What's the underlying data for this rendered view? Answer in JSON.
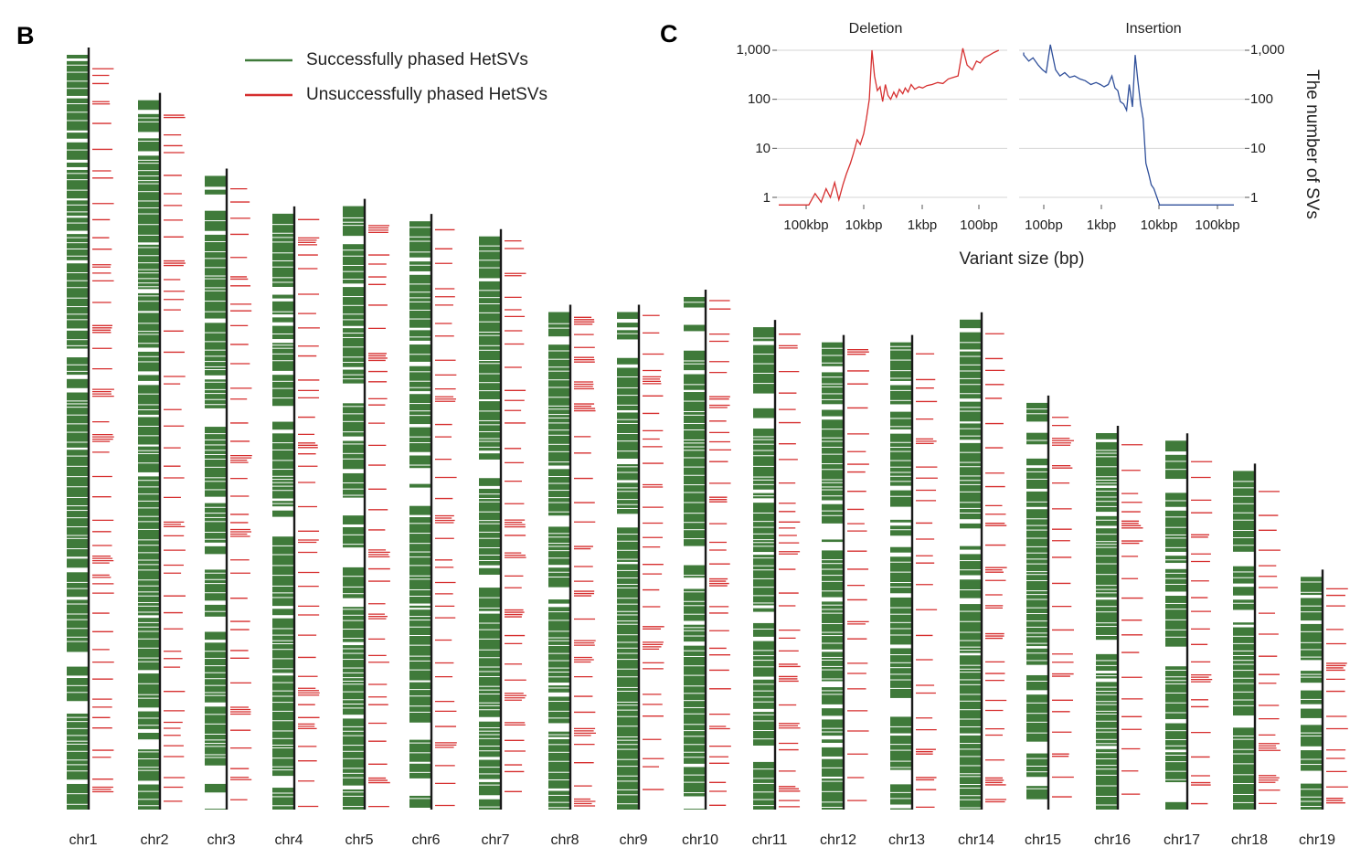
{
  "panel_b": {
    "letter": "B",
    "legend": {
      "success_label": "Successfully phased HetSVs",
      "fail_label": "Unsuccessfully phased HetSVs"
    },
    "colors": {
      "success": "#3f7a3a",
      "fail": "#d62f2f",
      "axis": "#1a1a1a"
    },
    "chromosomes": [
      {
        "label": "chr1",
        "top_frac": 1.0,
        "bottom_frac": 0.0
      },
      {
        "label": "chr2",
        "top_frac": 0.94,
        "bottom_frac": 0.0
      },
      {
        "label": "chr3",
        "top_frac": 0.84,
        "bottom_frac": 0.0
      },
      {
        "label": "chr4",
        "top_frac": 0.79,
        "bottom_frac": 0.0
      },
      {
        "label": "chr5",
        "top_frac": 0.8,
        "bottom_frac": 0.0
      },
      {
        "label": "chr6",
        "top_frac": 0.78,
        "bottom_frac": 0.0
      },
      {
        "label": "chr7",
        "top_frac": 0.76,
        "bottom_frac": 0.0
      },
      {
        "label": "chr8",
        "top_frac": 0.66,
        "bottom_frac": 0.0
      },
      {
        "label": "chr9",
        "top_frac": 0.66,
        "bottom_frac": 0.0
      },
      {
        "label": "chr10",
        "top_frac": 0.68,
        "bottom_frac": 0.0
      },
      {
        "label": "chr11",
        "top_frac": 0.64,
        "bottom_frac": 0.0
      },
      {
        "label": "chr12",
        "top_frac": 0.62,
        "bottom_frac": 0.0
      },
      {
        "label": "chr13",
        "top_frac": 0.62,
        "bottom_frac": 0.0
      },
      {
        "label": "chr14",
        "top_frac": 0.65,
        "bottom_frac": 0.0
      },
      {
        "label": "chr15",
        "top_frac": 0.54,
        "bottom_frac": 0.0
      },
      {
        "label": "chr16",
        "top_frac": 0.5,
        "bottom_frac": 0.0
      },
      {
        "label": "chr17",
        "top_frac": 0.49,
        "bottom_frac": 0.0
      },
      {
        "label": "chr18",
        "top_frac": 0.45,
        "bottom_frac": 0.0
      },
      {
        "label": "chr19",
        "top_frac": 0.31,
        "bottom_frac": 0.0
      }
    ]
  },
  "panel_c": {
    "letter": "C",
    "colors": {
      "deletion": "#d62f2f",
      "insertion": "#2f4f9a",
      "grid": "#d6d6d6"
    },
    "xlabel": "Variant size (bp)",
    "ylabel": "The number of SVs",
    "y_ticks": [
      "1,000",
      "100",
      "10",
      "1"
    ]
  },
  "chart_data": [
    {
      "type": "line",
      "title": "Deletion",
      "xlabel": "Variant size (bp)",
      "ylabel": "The number of SVs",
      "x_scale": "log-reversed",
      "y_scale": "log",
      "ylim": [
        0.7,
        1300
      ],
      "x_ticks": [
        "100kbp",
        "10kbp",
        "1kbp",
        "100bp"
      ],
      "x_tick_values": [
        100000,
        10000,
        1000,
        100
      ],
      "series": [
        {
          "name": "Deletion",
          "color": "#d62f2f",
          "x": [
            300000,
            150000,
            90000,
            70000,
            55000,
            45000,
            38000,
            32000,
            27000,
            23000,
            20000,
            17000,
            15000,
            13000,
            11500,
            10000,
            9000,
            8000,
            7200,
            6500,
            5800,
            5200,
            4700,
            4200,
            3800,
            3400,
            3000,
            2700,
            2400,
            2100,
            1900,
            1700,
            1500,
            1300,
            1100,
            950,
            800,
            650,
            520,
            420,
            340,
            280,
            230,
            190,
            160,
            130,
            110,
            95,
            80,
            65,
            55,
            45
          ],
          "y": [
            0.7,
            0.7,
            0.7,
            1.2,
            0.8,
            1.5,
            1.0,
            2.0,
            0.9,
            1.8,
            3.0,
            5.0,
            8.0,
            15.0,
            12.0,
            20.0,
            40.0,
            100.0,
            1000.0,
            300.0,
            150.0,
            180.0,
            90.0,
            200.0,
            120.0,
            100.0,
            140.0,
            110.0,
            160.0,
            130.0,
            170.0,
            140.0,
            200.0,
            160.0,
            180.0,
            170.0,
            190.0,
            200.0,
            220.0,
            210.0,
            260.0,
            280.0,
            300.0,
            1100.0,
            500.0,
            400.0,
            600.0,
            550.0,
            700.0,
            800.0,
            900.0,
            1000.0
          ]
        }
      ]
    },
    {
      "type": "line",
      "title": "Insertion",
      "xlabel": "Variant size (bp)",
      "ylabel": "The number of SVs",
      "x_scale": "log",
      "y_scale": "log",
      "ylim": [
        0.7,
        1300
      ],
      "x_ticks": [
        "100bp",
        "1kbp",
        "10kbp",
        "100kbp"
      ],
      "x_tick_values": [
        100,
        1000,
        10000,
        100000
      ],
      "series": [
        {
          "name": "Insertion",
          "color": "#2f4f9a",
          "x": [
            35,
            45,
            55,
            65,
            80,
            95,
            110,
            130,
            160,
            190,
            230,
            280,
            340,
            420,
            520,
            650,
            800,
            950,
            1100,
            1300,
            1500,
            1700,
            1900,
            2100,
            2400,
            2700,
            3000,
            3400,
            3800,
            4200,
            4700,
            5200,
            5800,
            6500,
            7200,
            8000,
            9000,
            10000,
            11500,
            13000,
            15000,
            17000,
            20000,
            25000,
            40000,
            80000,
            150000,
            300000
          ],
          "y": [
            900,
            800,
            600,
            700,
            500,
            400,
            350,
            1300,
            400,
            300,
            350,
            280,
            300,
            260,
            240,
            200,
            220,
            200,
            180,
            200,
            300,
            170,
            150,
            90,
            80,
            60,
            200,
            70,
            800,
            250,
            80,
            40,
            5,
            3,
            1.8,
            1.5,
            1.0,
            0.7,
            0.7,
            0.7,
            0.7,
            0.7,
            0.7,
            0.7,
            0.7,
            0.7,
            0.7,
            0.7
          ]
        }
      ]
    }
  ]
}
